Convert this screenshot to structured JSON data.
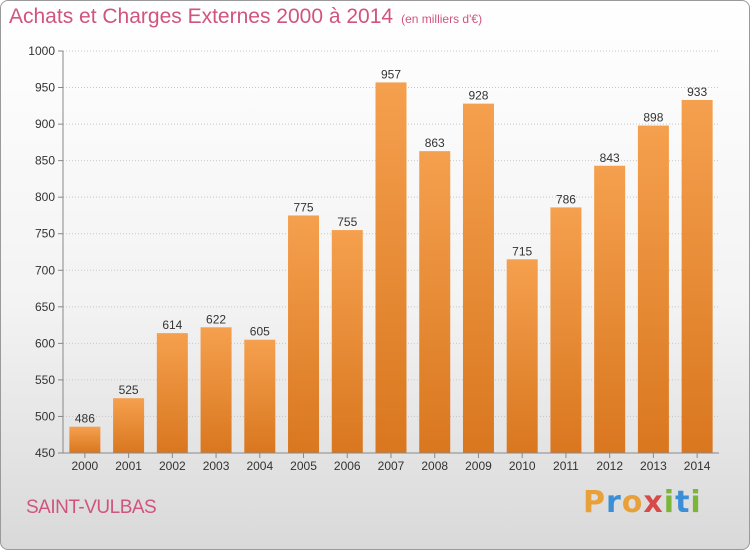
{
  "title": "Achats et Charges Externes 2000 à 2014",
  "subtitle": "(en milliers d'€)",
  "place": "SAINT-VULBAS",
  "logo": {
    "letters": [
      "P",
      "r",
      "o",
      "x",
      "i",
      "t",
      "i"
    ],
    "colors": [
      "#e8a13a",
      "#3b8fd6",
      "#e8a13a",
      "#d64a4a",
      "#7bb53a",
      "#3b8fd6",
      "#7bb53a"
    ]
  },
  "colors": {
    "bar_top": "#f5a04e",
    "bar_bottom": "#d9771f",
    "title": "#d1547c"
  },
  "chart_data": {
    "type": "bar",
    "categories": [
      "2000",
      "2001",
      "2002",
      "2003",
      "2004",
      "2005",
      "2006",
      "2007",
      "2008",
      "2009",
      "2010",
      "2011",
      "2012",
      "2013",
      "2014"
    ],
    "values": [
      486,
      525,
      614,
      622,
      605,
      775,
      755,
      957,
      863,
      928,
      715,
      786,
      843,
      898,
      933
    ],
    "ylim": [
      450,
      1000
    ],
    "yticks": [
      450,
      500,
      550,
      600,
      650,
      700,
      750,
      800,
      850,
      900,
      950,
      1000
    ],
    "grid": true
  }
}
